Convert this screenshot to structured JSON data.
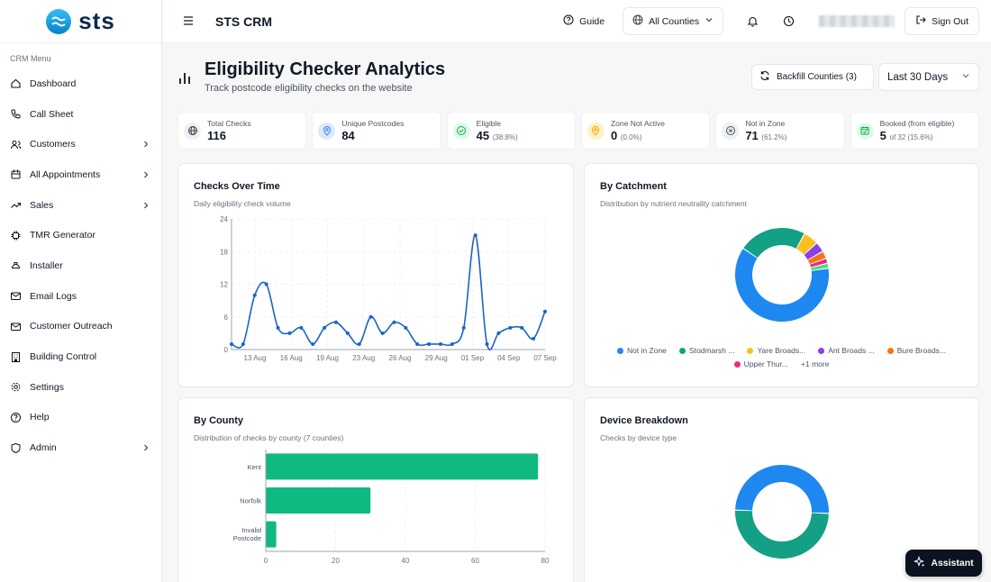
{
  "brand": {
    "logo_text": "sts"
  },
  "sidebar": {
    "menu_title": "CRM Menu",
    "items": [
      {
        "label": "Dashboard",
        "icon": "home-icon",
        "chevron": false
      },
      {
        "label": "Call Sheet",
        "icon": "phone-icon",
        "chevron": false
      },
      {
        "label": "Customers",
        "icon": "users-icon",
        "chevron": true
      },
      {
        "label": "All Appointments",
        "icon": "calendar-icon",
        "chevron": true
      },
      {
        "label": "Sales",
        "icon": "trending-up-icon",
        "chevron": true
      },
      {
        "label": "TMR Generator",
        "icon": "chip-icon",
        "chevron": false
      },
      {
        "label": "Installer",
        "icon": "hard-hat-icon",
        "chevron": false
      },
      {
        "label": "Email Logs",
        "icon": "mail-icon",
        "chevron": false
      },
      {
        "label": "Customer Outreach",
        "icon": "mail-icon",
        "chevron": false
      },
      {
        "label": "Building Control",
        "icon": "building-icon",
        "chevron": false
      },
      {
        "label": "Settings",
        "icon": "gear-icon",
        "chevron": false
      },
      {
        "label": "Help",
        "icon": "help-icon",
        "chevron": false
      },
      {
        "label": "Admin",
        "icon": "shield-icon",
        "chevron": true
      }
    ]
  },
  "topbar": {
    "title": "STS CRM",
    "guide_label": "Guide",
    "county_select": "All Counties",
    "signout_label": "Sign Out"
  },
  "header": {
    "title": "Eligibility Checker Analytics",
    "subtitle": "Track postcode eligibility checks on the website",
    "backfill_label": "Backfill Counties (3)",
    "range_value": "Last 30 Days"
  },
  "stats": [
    {
      "label": "Total Checks",
      "value": "116",
      "extra": "",
      "icon": "globe-icon",
      "bg": "#eef0f2",
      "fg": "#374151"
    },
    {
      "label": "Unique Postcodes",
      "value": "84",
      "extra": "",
      "icon": "map-pin-icon",
      "bg": "#dbeafe",
      "fg": "#3b82f6"
    },
    {
      "label": "Eligible",
      "value": "45",
      "extra": "(38.8%)",
      "icon": "check-circle-icon",
      "bg": "#dcfce7",
      "fg": "#16a34a"
    },
    {
      "label": "Zone Not Active",
      "value": "0",
      "extra": "(0.0%)",
      "icon": "map-pin-icon",
      "bg": "#fef3c7",
      "fg": "#f59e0b"
    },
    {
      "label": "Not in Zone",
      "value": "71",
      "extra": "(61.2%)",
      "icon": "x-circle-icon",
      "bg": "#eef0f2",
      "fg": "#4b5563"
    },
    {
      "label": "Booked (from eligible)",
      "value": "5",
      "extra": "of 32 (15.6%)",
      "icon": "calendar-check-icon",
      "bg": "#dcfce7",
      "fg": "#16a34a"
    }
  ],
  "cards": {
    "time": {
      "title": "Checks Over Time",
      "subtitle": "Daily eligibility check volume"
    },
    "catchment": {
      "title": "By Catchment",
      "subtitle": "Distribution by nutrient neutrality catchment"
    },
    "county": {
      "title": "By County",
      "subtitle": "Distribution of checks by county (7 counties)"
    },
    "device": {
      "title": "Device Breakdown",
      "subtitle": "Checks by device type"
    }
  },
  "chart_data": [
    {
      "type": "line",
      "title": "Checks Over Time",
      "subtitle": "Daily eligibility check volume",
      "x_tick_labels": [
        "13 Aug",
        "16 Aug",
        "19 Aug",
        "23 Aug",
        "26 Aug",
        "29 Aug",
        "01 Sep",
        "04 Sep",
        "07 Sep"
      ],
      "y": [
        1,
        1,
        10,
        12,
        4,
        3,
        4,
        1,
        4,
        5,
        3,
        1,
        6,
        3,
        5,
        4,
        1,
        1,
        1,
        1,
        4,
        21,
        1,
        3,
        4,
        4,
        2,
        7
      ],
      "ylim": [
        0,
        24
      ],
      "y_ticks": [
        0,
        6,
        12,
        18,
        24
      ],
      "color": "#1d63c7",
      "grid": true
    },
    {
      "type": "pie",
      "title": "By Catchment",
      "subtitle": "Distribution by nutrient neutrality catchment",
      "labels": [
        "Not in Zone",
        "Stodmarsh ...",
        "Yare Broads...",
        "Ant Broads ...",
        "Bure Broads...",
        "Upper Thur...",
        "+1 more"
      ],
      "values": [
        71,
        27,
        6,
        4,
        3,
        2,
        2
      ],
      "colors": [
        "#1e88f0",
        "#14a085",
        "#fbbf24",
        "#8b3fe8",
        "#f97316",
        "#ec2a7e",
        "#4ade80"
      ],
      "legend_placement": "bottom"
    },
    {
      "type": "bar",
      "orientation": "horizontal",
      "title": "By County",
      "subtitle": "Distribution of checks by county (7 counties)",
      "categories": [
        "Kent",
        "Norfolk",
        "Invalid Postcode"
      ],
      "values": [
        78,
        30,
        3
      ],
      "xlim": [
        0,
        80
      ],
      "x_ticks": [
        0,
        20,
        40,
        60,
        80
      ],
      "color": "#10b981"
    },
    {
      "type": "pie",
      "title": "Device Breakdown",
      "subtitle": "Checks by device type",
      "values": [
        50,
        50
      ],
      "colors": [
        "#1e88f0",
        "#14a085"
      ]
    }
  ],
  "assistant_label": "Assistant"
}
